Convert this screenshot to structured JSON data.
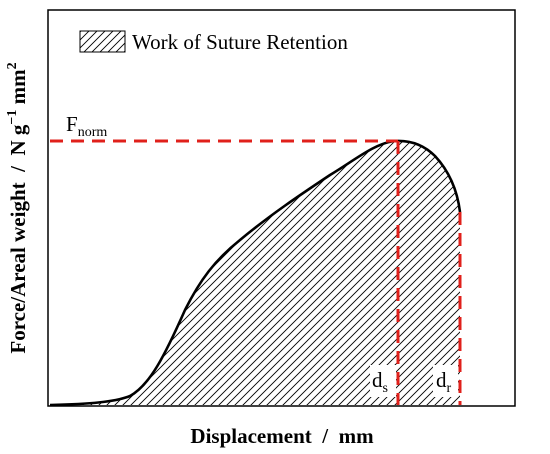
{
  "legend": {
    "label": "Work of Suture Retention"
  },
  "annotations": {
    "f_norm": {
      "base": "F",
      "sub": "norm"
    },
    "d_s": {
      "base": "d",
      "sub": "s"
    },
    "d_r": {
      "base": "d",
      "sub": "r"
    }
  },
  "x_axis_label": "Displacement  /  mm",
  "y_axis_label": {
    "main": "Force/Areal weight  /  N g",
    "exp1": "−1",
    "unit2": " mm",
    "exp2": "2"
  }
}
